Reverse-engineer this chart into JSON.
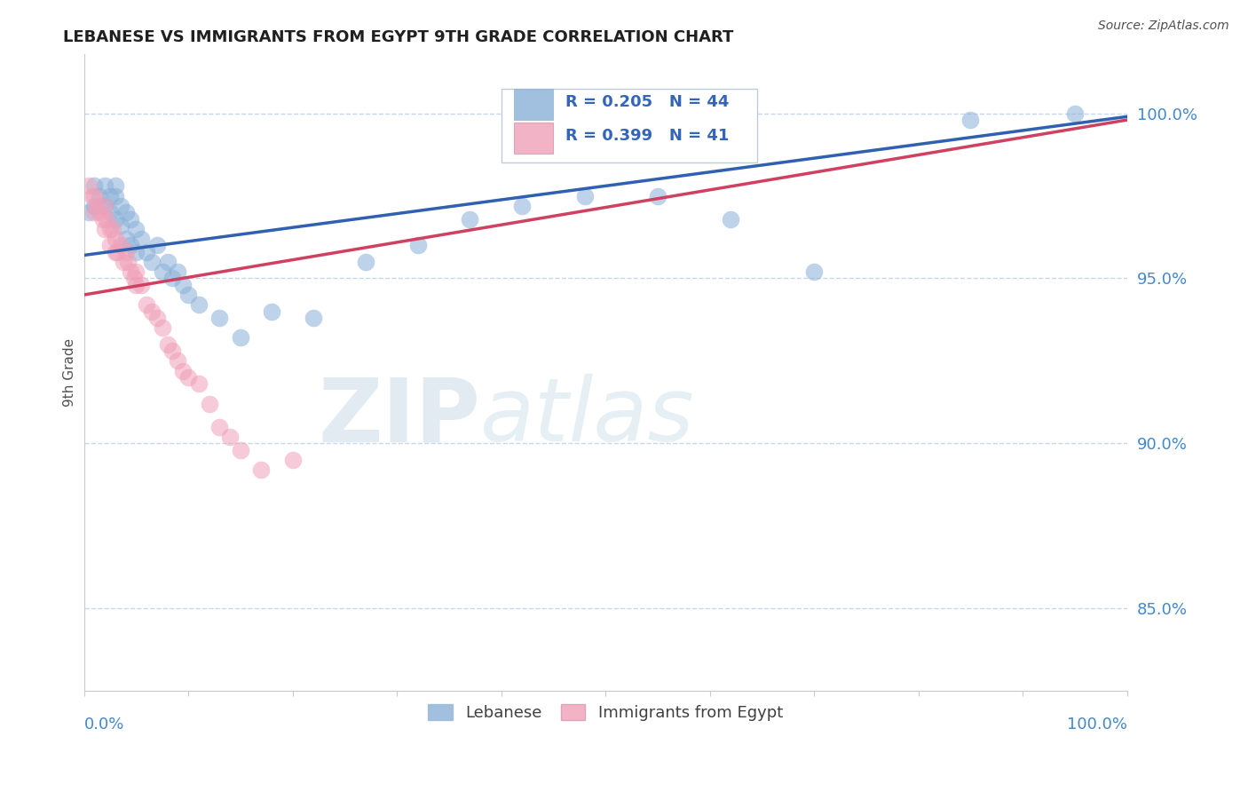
{
  "title": "LEBANESE VS IMMIGRANTS FROM EGYPT 9TH GRADE CORRELATION CHART",
  "source": "Source: ZipAtlas.com",
  "ylabel": "9th Grade",
  "y_ticks": [
    0.85,
    0.9,
    0.95,
    1.0
  ],
  "y_tick_labels": [
    "85.0%",
    "90.0%",
    "95.0%",
    "100.0%"
  ],
  "x_range": [
    0.0,
    1.0
  ],
  "y_range": [
    0.825,
    1.018
  ],
  "legend_r_blue": "R = 0.205",
  "legend_n_blue": "N = 44",
  "legend_r_pink": "R = 0.399",
  "legend_n_pink": "N = 41",
  "legend_label_blue": "Lebanese",
  "legend_label_pink": "Immigrants from Egypt",
  "blue_color": "#8ab0d8",
  "pink_color": "#f0a0b8",
  "blue_line_color": "#3060b0",
  "pink_line_color": "#d04060",
  "blue_x": [
    0.005,
    0.01,
    0.01,
    0.015,
    0.02,
    0.02,
    0.025,
    0.025,
    0.03,
    0.03,
    0.03,
    0.035,
    0.035,
    0.04,
    0.04,
    0.045,
    0.045,
    0.05,
    0.05,
    0.055,
    0.06,
    0.065,
    0.07,
    0.075,
    0.08,
    0.085,
    0.09,
    0.095,
    0.1,
    0.11,
    0.13,
    0.15,
    0.18,
    0.22,
    0.27,
    0.32,
    0.37,
    0.42,
    0.48,
    0.55,
    0.62,
    0.7,
    0.85,
    0.95
  ],
  "blue_y": [
    0.97,
    0.978,
    0.972,
    0.975,
    0.978,
    0.972,
    0.975,
    0.97,
    0.975,
    0.968,
    0.978,
    0.972,
    0.966,
    0.97,
    0.962,
    0.968,
    0.96,
    0.965,
    0.958,
    0.962,
    0.958,
    0.955,
    0.96,
    0.952,
    0.955,
    0.95,
    0.952,
    0.948,
    0.945,
    0.942,
    0.938,
    0.932,
    0.94,
    0.938,
    0.955,
    0.96,
    0.968,
    0.972,
    0.975,
    0.975,
    0.968,
    0.952,
    0.998,
    1.0
  ],
  "pink_x": [
    0.005,
    0.008,
    0.01,
    0.01,
    0.012,
    0.015,
    0.018,
    0.02,
    0.02,
    0.022,
    0.025,
    0.025,
    0.028,
    0.03,
    0.03,
    0.032,
    0.035,
    0.038,
    0.04,
    0.042,
    0.045,
    0.048,
    0.05,
    0.05,
    0.055,
    0.06,
    0.065,
    0.07,
    0.075,
    0.08,
    0.085,
    0.09,
    0.095,
    0.1,
    0.11,
    0.12,
    0.13,
    0.14,
    0.15,
    0.17,
    0.2
  ],
  "pink_y": [
    0.978,
    0.975,
    0.975,
    0.97,
    0.972,
    0.97,
    0.968,
    0.972,
    0.965,
    0.968,
    0.965,
    0.96,
    0.965,
    0.962,
    0.958,
    0.958,
    0.96,
    0.955,
    0.958,
    0.955,
    0.952,
    0.95,
    0.952,
    0.948,
    0.948,
    0.942,
    0.94,
    0.938,
    0.935,
    0.93,
    0.928,
    0.925,
    0.922,
    0.92,
    0.918,
    0.912,
    0.905,
    0.902,
    0.898,
    0.892,
    0.895
  ],
  "blue_trendline": [
    0.957,
    0.999
  ],
  "pink_trendline": [
    0.945,
    0.998
  ],
  "watermark_zip": "ZIP",
  "watermark_atlas": "atlas",
  "background_color": "#ffffff",
  "grid_color": "#c8d8e8",
  "axis_color": "#c8c8d0"
}
